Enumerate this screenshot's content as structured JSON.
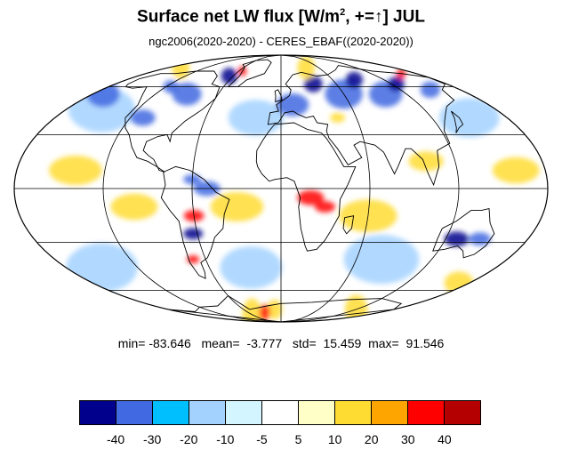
{
  "title": {
    "main": "Surface net LW flux [W/m",
    "sup": "2",
    "mid": ", +=",
    "arrow": "↑",
    "end": "]  JUL"
  },
  "subtitle": "ngc2006(2020-2020) - CERES_EBAF((2020-2020))",
  "stats": {
    "min_label": "min=",
    "min": "-83.646",
    "mean_label": "mean=",
    "mean": "-3.777",
    "std_label": "std=",
    "std": "15.459",
    "max_label": "max=",
    "max": "91.546"
  },
  "colorbar": {
    "colors": [
      "#00008c",
      "#4169e1",
      "#00bfff",
      "#a3d2ff",
      "#d2f5ff",
      "#ffffff",
      "#ffffc8",
      "#ffdc32",
      "#ffa500",
      "#ff0000",
      "#b40000"
    ],
    "ticks": [
      "-40",
      "-30",
      "-20",
      "-10",
      "-5",
      "5",
      "10",
      "20",
      "30",
      "40"
    ]
  },
  "map": {
    "projection": "mollweide",
    "month": "JUL",
    "colors": {
      "strong_negative": "#00008c",
      "negative": "#4169e1",
      "weak_negative": "#a3d2ff",
      "positive": "#ffdc32",
      "strong_positive": "#ff0000",
      "gridline": "#000000",
      "coastline": "#000000"
    }
  }
}
